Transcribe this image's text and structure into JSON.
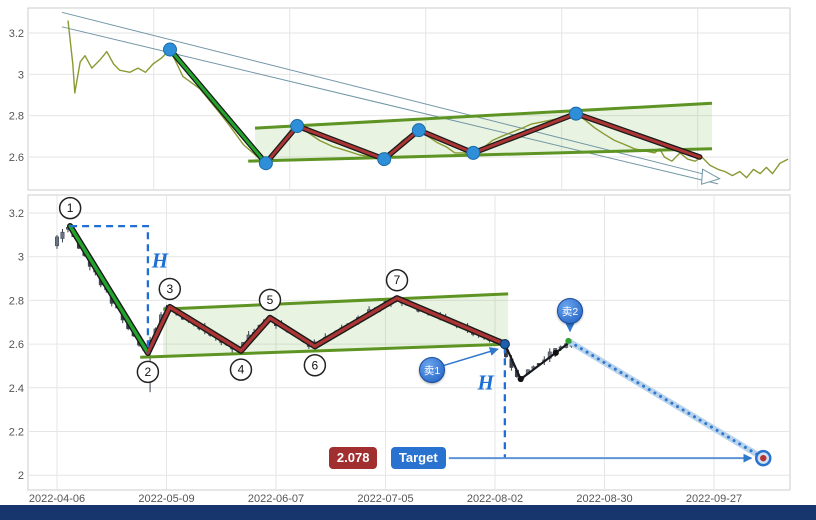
{
  "annotations": {
    "h_label": "H",
    "sell1": "卖1",
    "sell2": "卖2"
  },
  "target": {
    "price": "2.078",
    "label": "Target",
    "value": 2.078
  },
  "colors": {
    "grid": "#e6e6e6",
    "panel_border": "#cccccc",
    "axis_text": "#555555",
    "price_line": "#8a9a33",
    "trendline": "#5e9423",
    "wedge_fill": "rgba(130,190,90,0.18)",
    "channel": "#7096a6",
    "zig_outline": "#1a1a1a",
    "zig_up": "#22a32b",
    "zig_down": "#ab3434",
    "dot_blue": "#2e8fd8",
    "candle": "#39404d",
    "candle_up": "#6b7380",
    "accent_blue": "#1f6fd4",
    "target_line": "#5e93d6",
    "projection_base": "#b9d3ec",
    "projection_dot": "#2f78cc",
    "badge_blue": "#2a6fd6",
    "price_box": "#a12f2f",
    "target_box": "#2a72cf",
    "bottom_bar": "#17366e"
  },
  "chart_data": [
    {
      "type": "line",
      "panel": "overview",
      "title": "",
      "y_ticks": [
        "3.2",
        "3",
        "2.8",
        "2.6"
      ],
      "y_tick_values": [
        3.2,
        3.0,
        2.8,
        2.6
      ],
      "ylim": [
        2.44,
        3.32
      ],
      "x_gridline_idx": [
        0,
        20,
        40,
        60,
        80
      ],
      "series": [
        {
          "name": "price",
          "points": [
            [
              -12.6,
              3.26
            ],
            [
              -11.9,
              3.05
            ],
            [
              -11.6,
              2.91
            ],
            [
              -10.8,
              3.06
            ],
            [
              -10.1,
              3.09
            ],
            [
              -9.1,
              3.03
            ],
            [
              -7.9,
              3.07
            ],
            [
              -6.9,
              3.11
            ],
            [
              -5.9,
              3.05
            ],
            [
              -5.0,
              3.02
            ],
            [
              -3.5,
              3.01
            ],
            [
              -2.3,
              3.03
            ],
            [
              -1.2,
              3.01
            ],
            [
              -0.1,
              3.05
            ],
            [
              1.2,
              3.08
            ],
            [
              2.4,
              3.12
            ],
            [
              4.3,
              2.99
            ],
            [
              6.8,
              2.93
            ],
            [
              9.3,
              2.83
            ],
            [
              11.2,
              2.75
            ],
            [
              13.2,
              2.66
            ],
            [
              15.3,
              2.6
            ],
            [
              16.5,
              2.57
            ],
            [
              18.0,
              2.62
            ],
            [
              19.6,
              2.69
            ],
            [
              21.1,
              2.75
            ],
            [
              22.6,
              2.72
            ],
            [
              24.4,
              2.68
            ],
            [
              26.4,
              2.65
            ],
            [
              28.4,
              2.63
            ],
            [
              30.3,
              2.61
            ],
            [
              32.1,
              2.6
            ],
            [
              33.9,
              2.59
            ],
            [
              35.1,
              2.63
            ],
            [
              36.6,
              2.68
            ],
            [
              38.0,
              2.71
            ],
            [
              39.0,
              2.73
            ],
            [
              40.3,
              2.7
            ],
            [
              41.7,
              2.67
            ],
            [
              43.0,
              2.65
            ],
            [
              44.3,
              2.62
            ],
            [
              45.6,
              2.62
            ],
            [
              47.0,
              2.61
            ],
            [
              48.3,
              2.64
            ],
            [
              49.8,
              2.68
            ],
            [
              51.2,
              2.7
            ],
            [
              52.7,
              2.72
            ],
            [
              54.2,
              2.74
            ],
            [
              55.6,
              2.76
            ],
            [
              57.1,
              2.77
            ],
            [
              58.6,
              2.78
            ],
            [
              60.1,
              2.79
            ],
            [
              61.3,
              2.8
            ],
            [
              62.1,
              2.81
            ],
            [
              63.4,
              2.78
            ],
            [
              64.9,
              2.74
            ],
            [
              66.3,
              2.71
            ],
            [
              67.8,
              2.68
            ],
            [
              69.3,
              2.66
            ],
            [
              70.7,
              2.64
            ],
            [
              72.2,
              2.63
            ],
            [
              73.7,
              2.62
            ],
            [
              74.4,
              2.64
            ],
            [
              75.1,
              2.6
            ],
            [
              76.2,
              2.58
            ],
            [
              77.4,
              2.62
            ],
            [
              78.5,
              2.59
            ],
            [
              79.6,
              2.58
            ],
            [
              80.6,
              2.6
            ],
            [
              81.8,
              2.56
            ],
            [
              83.0,
              2.54
            ],
            [
              84.0,
              2.53
            ],
            [
              85.1,
              2.51
            ],
            [
              86.2,
              2.53
            ],
            [
              87.2,
              2.5
            ],
            [
              88.2,
              2.54
            ],
            [
              89.2,
              2.52
            ],
            [
              90.1,
              2.55
            ],
            [
              91.0,
              2.52
            ],
            [
              92.1,
              2.57
            ],
            [
              93.3,
              2.59
            ]
          ]
        }
      ],
      "zigzag_points": [
        [
          2.4,
          3.12
        ],
        [
          16.5,
          2.57
        ],
        [
          21.1,
          2.75
        ],
        [
          33.9,
          2.59
        ],
        [
          39.0,
          2.73
        ],
        [
          47.0,
          2.62
        ],
        [
          62.1,
          2.81
        ],
        [
          80.3,
          2.6
        ]
      ],
      "dot_count": 7,
      "trendline_upper": [
        [
          14.9,
          2.74
        ],
        [
          82.1,
          2.86
        ]
      ],
      "trendline_lower": [
        [
          13.9,
          2.58
        ],
        [
          82.1,
          2.64
        ]
      ],
      "channel_line_1": [
        [
          -13.5,
          3.3
        ],
        [
          83.0,
          2.5
        ]
      ],
      "channel_line_2": [
        [
          -13.5,
          3.23
        ],
        [
          83.0,
          2.47
        ]
      ]
    },
    {
      "type": "candlestick",
      "panel": "detail",
      "title": "",
      "x_ticks": [
        "2022-04-06",
        "2022-05-09",
        "2022-06-07",
        "2022-07-05",
        "2022-08-02",
        "2022-08-30",
        "2022-09-27"
      ],
      "x_tick_idx": [
        0,
        20,
        40,
        60,
        80,
        100,
        120
      ],
      "y_ticks": [
        "3.2",
        "3",
        "2.8",
        "2.6",
        "2.4",
        "2.2",
        "2"
      ],
      "y_tick_values": [
        3.2,
        3.0,
        2.8,
        2.6,
        2.4,
        2.2,
        2.0
      ],
      "ylim": [
        1.93,
        3.28
      ],
      "pivots": [
        {
          "label": "1",
          "idx": 2.4,
          "value": 3.14,
          "side": "above"
        },
        {
          "label": "2",
          "idx": 16.6,
          "value": 2.56,
          "side": "below"
        },
        {
          "label": "3",
          "idx": 20.6,
          "value": 2.77,
          "side": "above"
        },
        {
          "label": "4",
          "idx": 33.6,
          "value": 2.57,
          "side": "below"
        },
        {
          "label": "5",
          "idx": 38.9,
          "value": 2.72,
          "side": "above"
        },
        {
          "label": "6",
          "idx": 47.1,
          "value": 2.59,
          "side": "below"
        },
        {
          "label": "7",
          "idx": 62.1,
          "value": 2.81,
          "side": "above"
        },
        {
          "label": "",
          "idx": 81.8,
          "value": 2.6,
          "side": "none"
        }
      ],
      "candle_path": [
        [
          0,
          3.05
        ],
        [
          2.4,
          3.14
        ],
        [
          16.6,
          2.56
        ],
        [
          20.6,
          2.77
        ],
        [
          33.6,
          2.57
        ],
        [
          38.9,
          2.72
        ],
        [
          47.1,
          2.59
        ],
        [
          62.1,
          2.81
        ],
        [
          81.8,
          2.6
        ],
        [
          84.7,
          2.44
        ],
        [
          91.1,
          2.56
        ],
        [
          93.7,
          2.6
        ]
      ],
      "candle_count": 95,
      "long_wick": {
        "idx": 17,
        "low": 2.38
      },
      "trendline_upper": [
        [
          19.4,
          2.76
        ],
        [
          82.4,
          2.83
        ]
      ],
      "trendline_lower": [
        [
          15.2,
          2.54
        ],
        [
          82.4,
          2.6
        ]
      ],
      "measure_flagpole": {
        "h_from": [
          2.4,
          3.14
        ],
        "corner": [
          16.6,
          3.14
        ],
        "v_to": [
          16.6,
          2.56
        ]
      },
      "measure_target": {
        "from": [
          81.8,
          2.59
        ],
        "to": [
          81.8,
          2.078
        ]
      },
      "post_breakout_path": [
        [
          81.8,
          2.6
        ],
        [
          84.7,
          2.44
        ],
        [
          91.1,
          2.56
        ],
        [
          93.7,
          2.61
        ]
      ],
      "projection": {
        "from": [
          93.7,
          2.61
        ],
        "to": [
          129.0,
          2.078
        ]
      },
      "sell1_anchor": {
        "idx": 68.5,
        "value": 2.48,
        "points_to": [
          81.8,
          2.6
        ]
      },
      "sell2_anchor": {
        "idx": 93.7,
        "value": 2.75,
        "points_to": [
          93.7,
          2.645
        ]
      },
      "h1_anchor": {
        "idx": 18.8,
        "value": 2.98
      },
      "h2_anchor": {
        "idx": 78.3,
        "value": 2.42
      }
    }
  ]
}
